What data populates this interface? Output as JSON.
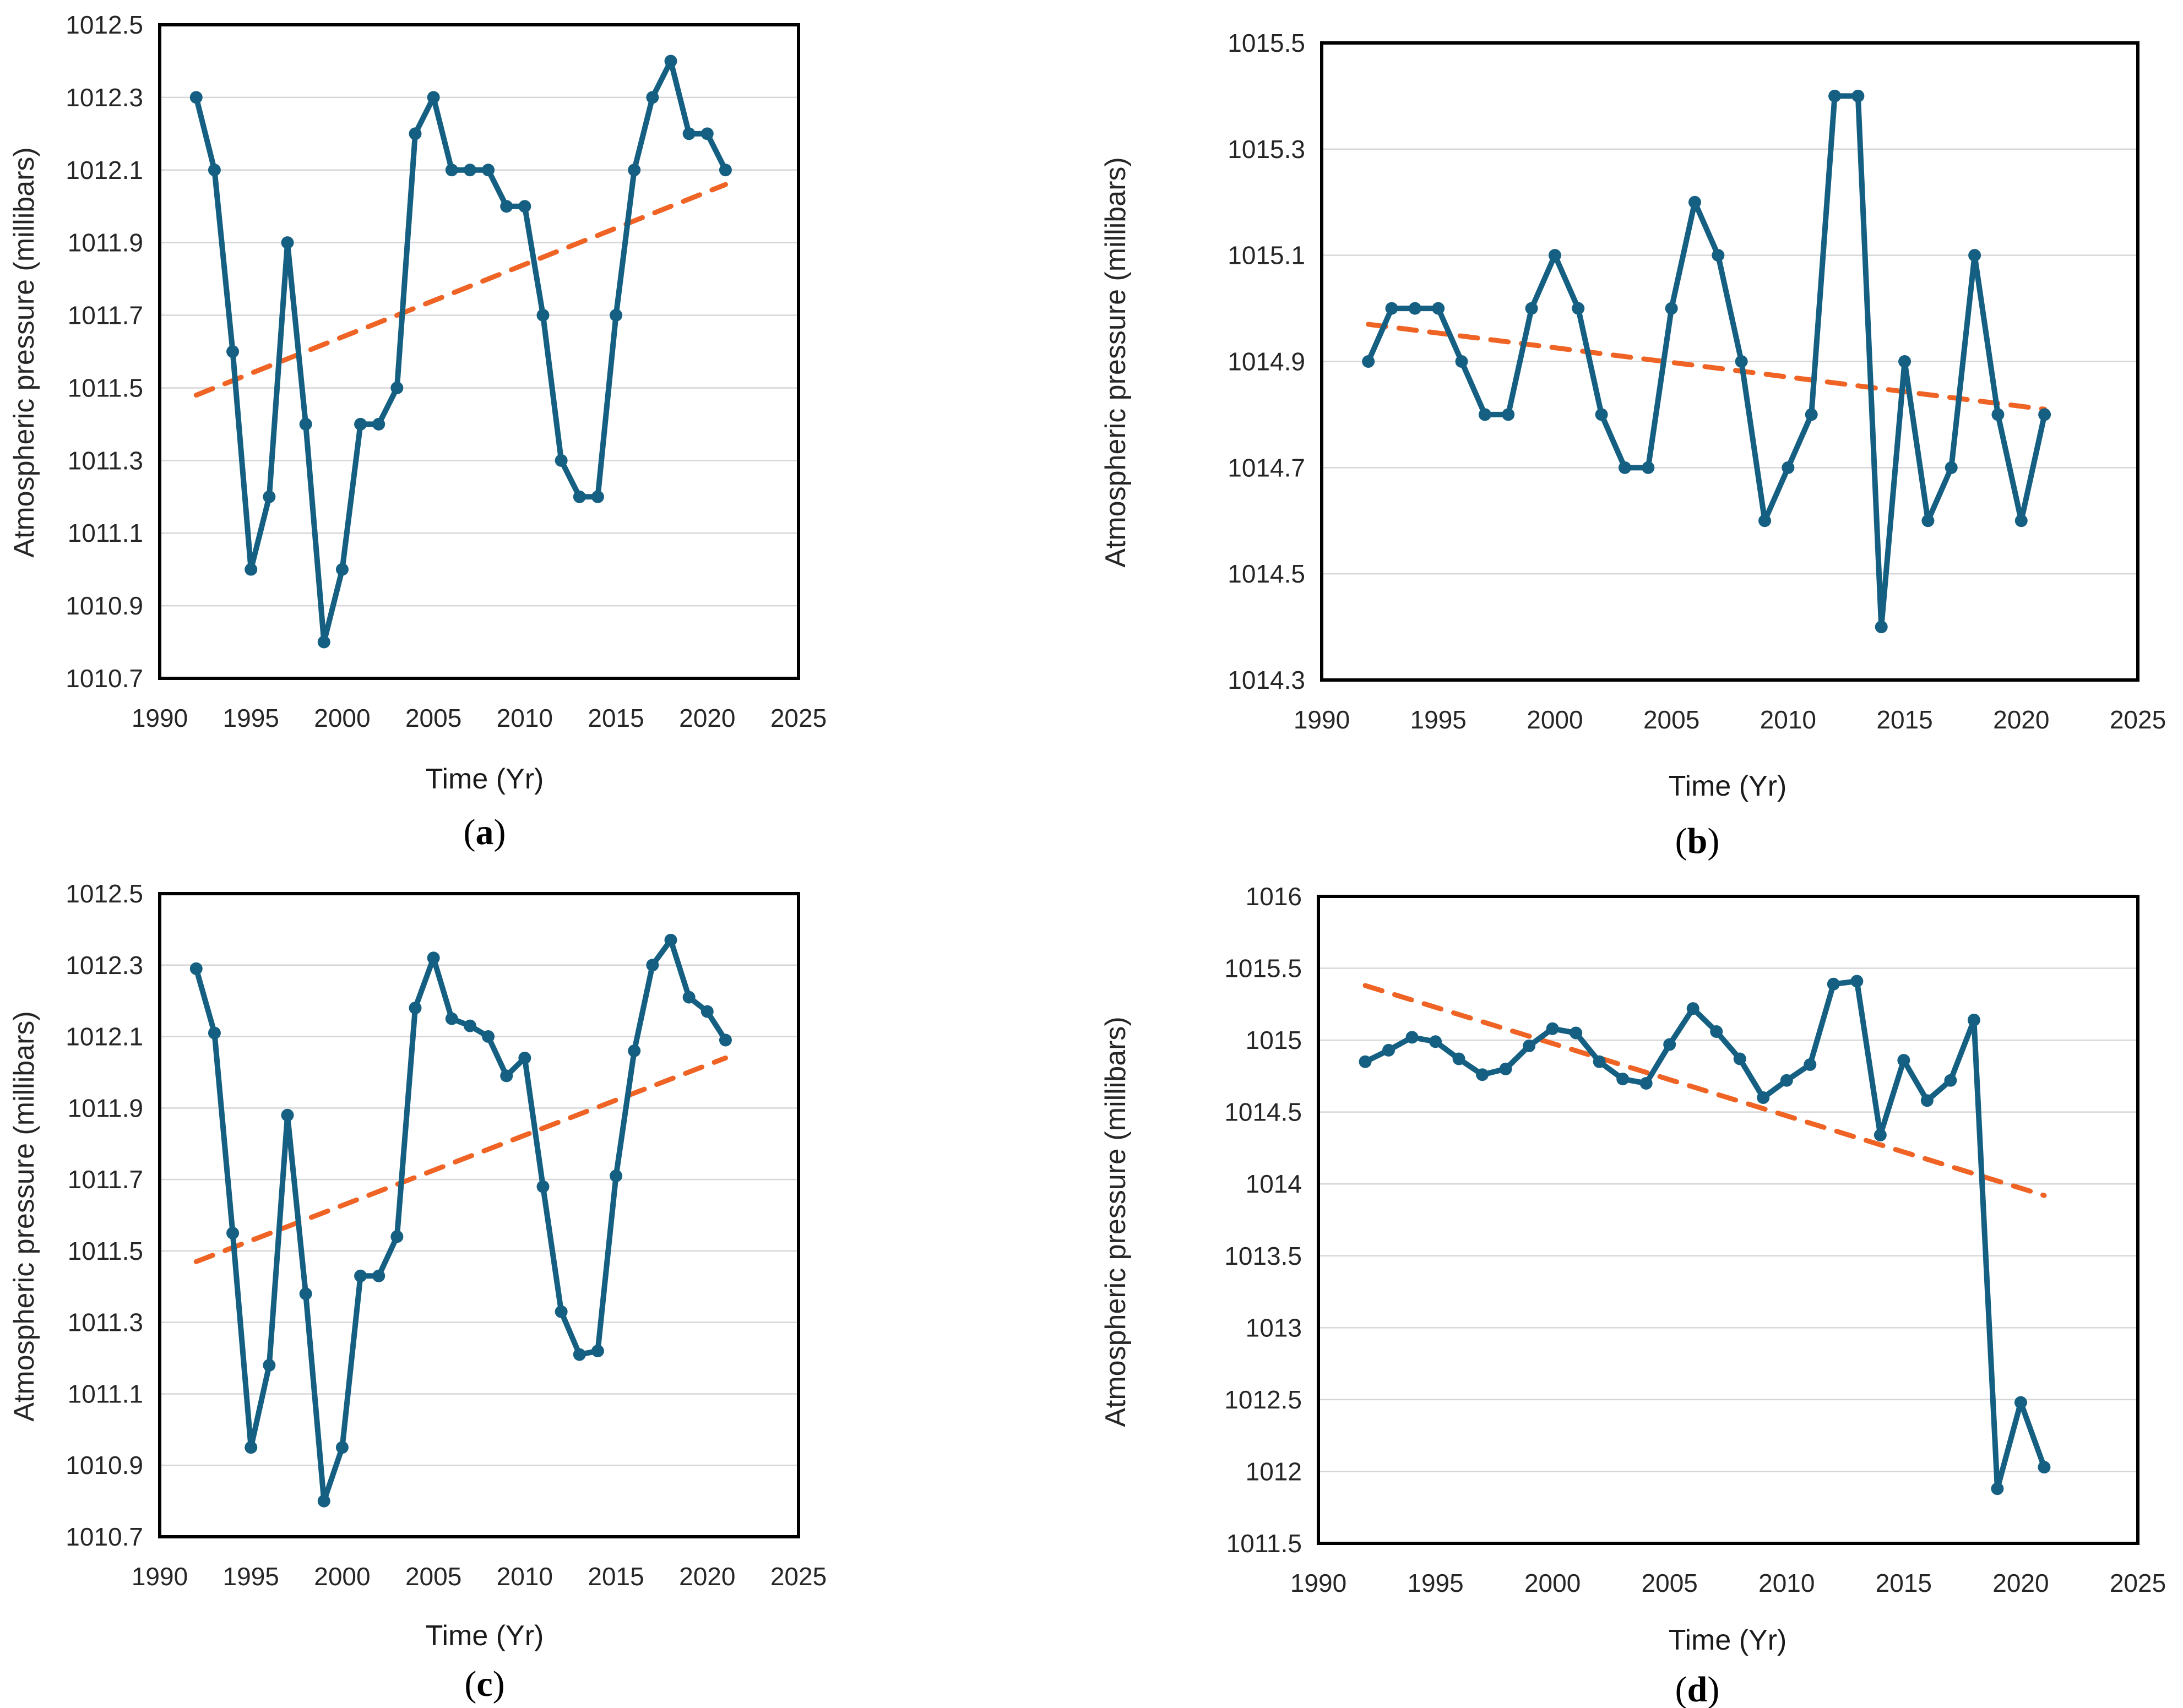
{
  "strings": {
    "caption_open": "(",
    "caption_close": ")"
  },
  "style": {
    "series_color": "#156082",
    "trend_color": "#EF6425",
    "grid_color": "#D6D6D6",
    "frame_color": "#000000",
    "tick_color": "#262626"
  },
  "chart_data": [
    {
      "type": "line",
      "panel_label": "a",
      "xlabel": "Time (Yr)",
      "ylabel": "Atmospheric pressure (millibars)",
      "legend": "none",
      "grid": "horizontal",
      "marker": "circle",
      "xlim": [
        1990,
        2025
      ],
      "ylim": [
        1010.7,
        1012.5
      ],
      "x_ticks": [
        1990,
        1995,
        2000,
        2005,
        2010,
        2015,
        2020,
        2025
      ],
      "y_ticks": [
        1010.7,
        1010.9,
        1011.1,
        1011.3,
        1011.5,
        1011.7,
        1011.9,
        1012.1,
        1012.3,
        1012.5
      ],
      "y_tick_labels": [
        "1010.7",
        "1010.9",
        "1011.1",
        "1011.3",
        "1011.5",
        "1011.7",
        "1011.9",
        "1012.1",
        "1012.3",
        "1012.5"
      ],
      "years": [
        1992,
        1993,
        1994,
        1995,
        1996,
        1997,
        1998,
        1999,
        2000,
        2001,
        2002,
        2003,
        2004,
        2005,
        2006,
        2007,
        2008,
        2009,
        2010,
        2011,
        2012,
        2013,
        2014,
        2015,
        2016,
        2017,
        2018,
        2019,
        2020,
        2021
      ],
      "values": [
        1012.3,
        1012.1,
        1011.6,
        1011.0,
        1011.2,
        1011.9,
        1011.4,
        1010.8,
        1011.0,
        1011.4,
        1011.4,
        1011.5,
        1012.2,
        1012.3,
        1012.1,
        1012.1,
        1012.1,
        1012.0,
        1012.0,
        1011.7,
        1011.3,
        1011.2,
        1011.2,
        1011.7,
        1012.1,
        1012.3,
        1012.4,
        1012.2,
        1012.2,
        1012.1
      ],
      "trend": {
        "x1": 1992,
        "y1": 1011.48,
        "x2": 2021,
        "y2": 1012.06,
        "style": "dashed"
      }
    },
    {
      "type": "line",
      "panel_label": "b",
      "xlabel": "Time (Yr)",
      "ylabel": "Atmospheric pressure (millibars)",
      "legend": "none",
      "grid": "horizontal",
      "marker": "circle",
      "xlim": [
        1990,
        2025
      ],
      "ylim": [
        1014.3,
        1015.5
      ],
      "x_ticks": [
        1990,
        1995,
        2000,
        2005,
        2010,
        2015,
        2020,
        2025
      ],
      "y_ticks": [
        1014.3,
        1014.5,
        1014.7,
        1014.9,
        1015.1,
        1015.3,
        1015.5
      ],
      "y_tick_labels": [
        "1014.3",
        "1014.5",
        "1014.7",
        "1014.9",
        "1015.1",
        "1015.3",
        "1015.5"
      ],
      "years": [
        1992,
        1993,
        1994,
        1995,
        1996,
        1997,
        1998,
        1999,
        2000,
        2001,
        2002,
        2003,
        2004,
        2005,
        2006,
        2007,
        2008,
        2009,
        2010,
        2011,
        2012,
        2013,
        2014,
        2015,
        2016,
        2017,
        2018,
        2019,
        2020,
        2021
      ],
      "values": [
        1014.9,
        1015.0,
        1015.0,
        1015.0,
        1014.9,
        1014.8,
        1014.8,
        1015.0,
        1015.1,
        1015.0,
        1014.8,
        1014.7,
        1014.7,
        1015.0,
        1015.2,
        1015.1,
        1014.9,
        1014.6,
        1014.7,
        1014.8,
        1015.4,
        1015.4,
        1014.4,
        1014.9,
        1014.6,
        1014.7,
        1015.1,
        1014.8,
        1014.6,
        1014.8
      ],
      "trend": {
        "x1": 1992,
        "y1": 1014.97,
        "x2": 2021,
        "y2": 1014.81,
        "style": "dashed"
      }
    },
    {
      "type": "line",
      "panel_label": "c",
      "xlabel": "Time (Yr)",
      "ylabel": "Atmospheric pressure (millibars)",
      "legend": "none",
      "grid": "horizontal",
      "marker": "circle",
      "xlim": [
        1990,
        2025
      ],
      "ylim": [
        1010.7,
        1012.5
      ],
      "x_ticks": [
        1990,
        1995,
        2000,
        2005,
        2010,
        2015,
        2020,
        2025
      ],
      "y_ticks": [
        1010.7,
        1010.9,
        1011.1,
        1011.3,
        1011.5,
        1011.7,
        1011.9,
        1012.1,
        1012.3,
        1012.5
      ],
      "y_tick_labels": [
        "1010.7",
        "1010.9",
        "1011.1",
        "1011.3",
        "1011.5",
        "1011.7",
        "1011.9",
        "1012.1",
        "1012.3",
        "1012.5"
      ],
      "years": [
        1992,
        1993,
        1994,
        1995,
        1996,
        1997,
        1998,
        1999,
        2000,
        2001,
        2002,
        2003,
        2004,
        2005,
        2006,
        2007,
        2008,
        2009,
        2010,
        2011,
        2012,
        2013,
        2014,
        2015,
        2016,
        2017,
        2018,
        2019,
        2020,
        2021
      ],
      "values": [
        1012.29,
        1012.11,
        1011.55,
        1010.95,
        1011.18,
        1011.88,
        1011.38,
        1010.8,
        1010.95,
        1011.43,
        1011.43,
        1011.54,
        1012.18,
        1012.32,
        1012.15,
        1012.13,
        1012.1,
        1011.99,
        1012.04,
        1011.68,
        1011.33,
        1011.21,
        1011.22,
        1011.71,
        1012.06,
        1012.3,
        1012.37,
        1012.21,
        1012.17,
        1012.09
      ],
      "trend": {
        "x1": 1992,
        "y1": 1011.47,
        "x2": 2021,
        "y2": 1012.04,
        "style": "dashed"
      }
    },
    {
      "type": "line",
      "panel_label": "d",
      "xlabel": "Time (Yr)",
      "ylabel": "Atmospheric pressure (millibars)",
      "legend": "none",
      "grid": "horizontal",
      "marker": "circle",
      "xlim": [
        1990,
        2025
      ],
      "ylim": [
        1011.5,
        1016
      ],
      "x_ticks": [
        1990,
        1995,
        2000,
        2005,
        2010,
        2015,
        2020,
        2025
      ],
      "y_ticks": [
        1011.5,
        1012,
        1012.5,
        1013,
        1013.5,
        1014,
        1014.5,
        1015,
        1015.5,
        1016
      ],
      "y_tick_labels": [
        "1011.5",
        "1012",
        "1012.5",
        "1013",
        "1013.5",
        "1014",
        "1014.5",
        "1015",
        "1015.5",
        "1016"
      ],
      "years": [
        1992,
        1993,
        1994,
        1995,
        1996,
        1997,
        1998,
        1999,
        2000,
        2001,
        2002,
        2003,
        2004,
        2005,
        2006,
        2007,
        2008,
        2009,
        2010,
        2011,
        2012,
        2013,
        2014,
        2015,
        2016,
        2017,
        2018,
        2019,
        2020,
        2021
      ],
      "values": [
        1014.85,
        1014.93,
        1015.02,
        1014.99,
        1014.87,
        1014.76,
        1014.8,
        1014.96,
        1015.08,
        1015.05,
        1014.85,
        1014.73,
        1014.7,
        1014.97,
        1015.22,
        1015.06,
        1014.87,
        1014.6,
        1014.72,
        1014.83,
        1015.39,
        1015.41,
        1014.34,
        1014.86,
        1014.58,
        1014.72,
        1015.14,
        1011.88,
        1012.48,
        1012.03
      ],
      "trend": {
        "x1": 1992,
        "y1": 1015.38,
        "x2": 2021,
        "y2": 1013.92,
        "style": "dashed"
      }
    }
  ]
}
